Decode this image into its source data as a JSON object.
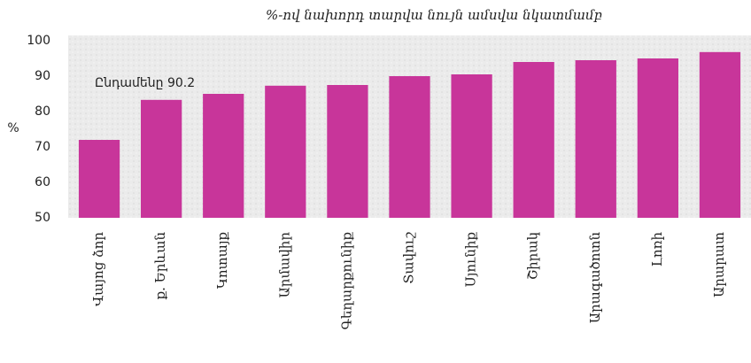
{
  "chart_data": {
    "type": "bar",
    "title": "%-ով նախորդ տարվա նույն ամսվա նկատմամբ",
    "y_label": "%",
    "annotation": "Ընդամենը 90.2",
    "categories": [
      "Վայոց ձոր",
      "ք. Երևան",
      "Կոտայք",
      "Արմավիր",
      "Գեղարքունիք",
      "Տավուշ",
      "Սյունիք",
      "Շիրակ",
      "Արագածոտն",
      "Լոռի",
      "Արարատ"
    ],
    "values": [
      72,
      83.3,
      85,
      87.3,
      87.5,
      90,
      90.5,
      94,
      94.5,
      95,
      96.8
    ],
    "color": "#c8359a",
    "ylim": [
      50,
      100
    ],
    "yticks": [
      50,
      60,
      70,
      80,
      90,
      100
    ],
    "grid": false
  }
}
